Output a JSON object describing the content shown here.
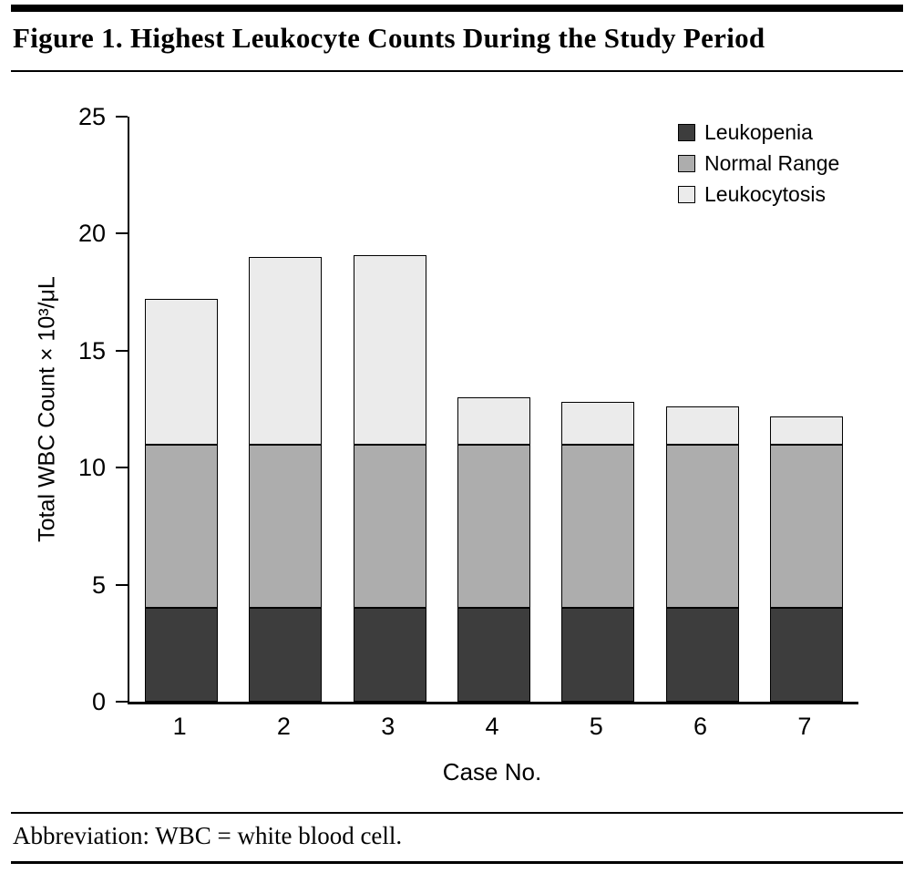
{
  "figure": {
    "title": "Figure 1. Highest Leukocyte Counts During the Study Period",
    "abbreviation": "Abbreviation: WBC = white blood cell."
  },
  "chart_data": {
    "type": "bar",
    "stacked": true,
    "title": "Figure 1. Highest Leukocyte Counts During the Study Period",
    "xlabel": "Case No.",
    "ylabel": "Total WBC Count × 10³/μL",
    "ylim": [
      0,
      25
    ],
    "ytick_step": 5,
    "grid": false,
    "legend_position": "top-right",
    "categories": [
      "1",
      "2",
      "3",
      "4",
      "5",
      "6",
      "7"
    ],
    "series": [
      {
        "name": "Leukopenia",
        "color": "#3d3d3d",
        "values": [
          4,
          4,
          4,
          4,
          4,
          4,
          4
        ]
      },
      {
        "name": "Normal Range",
        "color": "#adadad",
        "values": [
          7,
          7,
          7,
          7,
          7,
          7,
          7
        ]
      },
      {
        "name": "Leukocytosis",
        "color": "#ebebeb",
        "values": [
          6.2,
          8.0,
          8.1,
          2.0,
          1.8,
          1.6,
          1.2
        ]
      }
    ],
    "totals": [
      17.2,
      19.0,
      19.1,
      13.0,
      12.8,
      12.6,
      12.2
    ]
  }
}
